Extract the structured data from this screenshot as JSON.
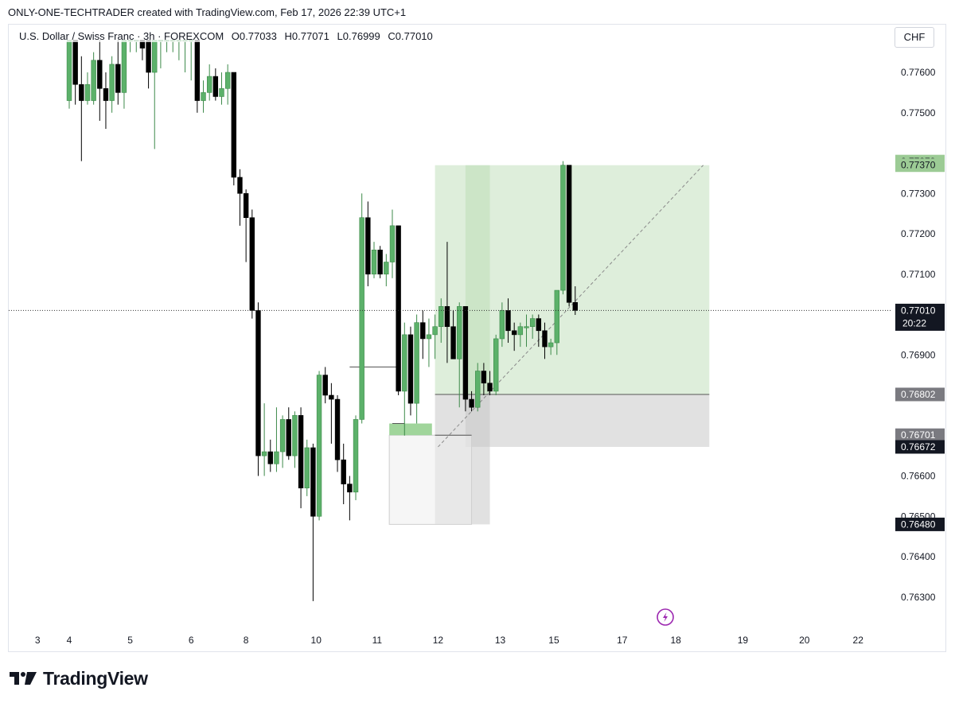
{
  "header": {
    "text": "ONLY-ONE-TECHTRADER created with TradingView.com, Feb 17, 2026 22:39 UTC+1"
  },
  "legend": {
    "symbol": "U.S. Dollar / Swiss Franc · 3h · FOREXCOM",
    "open": "O0.77033",
    "high": "H0.77071",
    "low": "L0.76999",
    "close": "C0.77010"
  },
  "currency": "CHF",
  "brand": "TradingView",
  "colors": {
    "up": "#5cb16a",
    "down": "#000000",
    "profit_zone": "#b5d9b0",
    "loss_zone": "#c9c9c9",
    "grid_line": "#e0e3eb",
    "text": "#131722"
  },
  "chart_data": {
    "type": "candlestick",
    "y_axis": {
      "range": [
        0.7624,
        0.7768
      ],
      "ticks": [
        "0.76300",
        "0.76400",
        "0.76500",
        "0.76600",
        "0.76900",
        "0.77100",
        "0.77200",
        "0.77300",
        "0.77500",
        "0.77600"
      ]
    },
    "x_axis": {
      "ticks": [
        {
          "label": "3",
          "pos": -5.2
        },
        {
          "label": "4",
          "pos": 0
        },
        {
          "label": "5",
          "pos": 10
        },
        {
          "label": "6",
          "pos": 20
        },
        {
          "label": "8",
          "pos": 29
        },
        {
          "label": "10",
          "pos": 40.5
        },
        {
          "label": "11",
          "pos": 50.5
        },
        {
          "label": "12",
          "pos": 60.5
        },
        {
          "label": "13",
          "pos": 70.7
        },
        {
          "label": "15",
          "pos": 79.5
        },
        {
          "label": "17",
          "pos": 90.7
        },
        {
          "label": "18",
          "pos": 99.5
        },
        {
          "label": "19",
          "pos": 110.5
        },
        {
          "label": "20",
          "pos": 120.6
        },
        {
          "label": "22",
          "pos": 129.4
        }
      ]
    },
    "price_labels": [
      {
        "value": "0.77379",
        "price": 0.77379,
        "style": "green"
      },
      {
        "value": "0.77370",
        "price": 0.7737,
        "style": "green"
      },
      {
        "value": "0.77010",
        "price": 0.7701,
        "style": "dark",
        "countdown": "20:22"
      },
      {
        "value": "0.76802",
        "price": 0.76802,
        "style": "gray"
      },
      {
        "value": "0.76701",
        "price": 0.76701,
        "style": "gray"
      },
      {
        "value": "0.76672",
        "price": 0.76672,
        "style": "dark"
      },
      {
        "value": "0.76480",
        "price": 0.7648,
        "style": "dark"
      }
    ],
    "current_price": 0.7701,
    "candles": [
      {
        "o": 0.7753,
        "h": 0.7768,
        "l": 0.7751,
        "c": 0.7768
      },
      {
        "o": 0.7768,
        "h": 0.7768,
        "l": 0.7752,
        "c": 0.7757
      },
      {
        "o": 0.7757,
        "h": 0.7764,
        "l": 0.7738,
        "c": 0.7753
      },
      {
        "o": 0.7753,
        "h": 0.776,
        "l": 0.7752,
        "c": 0.7757
      },
      {
        "o": 0.7753,
        "h": 0.7765,
        "l": 0.7752,
        "c": 0.7763
      },
      {
        "o": 0.7763,
        "h": 0.7768,
        "l": 0.7748,
        "c": 0.7756
      },
      {
        "o": 0.7756,
        "h": 0.776,
        "l": 0.7746,
        "c": 0.7753
      },
      {
        "o": 0.7753,
        "h": 0.7764,
        "l": 0.775,
        "c": 0.7762
      },
      {
        "o": 0.7762,
        "h": 0.7768,
        "l": 0.7752,
        "c": 0.7755
      },
      {
        "o": 0.7755,
        "h": 0.7768,
        "l": 0.7751,
        "c": 0.7768
      },
      {
        "o": 0.7768,
        "h": 0.7768,
        "l": 0.7765,
        "c": 0.7768
      },
      {
        "o": 0.7768,
        "h": 0.7768,
        "l": 0.7765,
        "c": 0.7768
      },
      {
        "o": 0.7768,
        "h": 0.7768,
        "l": 0.7763,
        "c": 0.7766
      },
      {
        "o": 0.7768,
        "h": 0.7768,
        "l": 0.7756,
        "c": 0.776
      },
      {
        "o": 0.776,
        "h": 0.7768,
        "l": 0.7741,
        "c": 0.7768
      },
      {
        "o": 0.7768,
        "h": 0.7768,
        "l": 0.7761,
        "c": 0.7768
      },
      {
        "o": 0.7768,
        "h": 0.7768,
        "l": 0.7765,
        "c": 0.7768
      },
      {
        "o": 0.7768,
        "h": 0.7768,
        "l": 0.7765,
        "c": 0.7768
      },
      {
        "o": 0.7768,
        "h": 0.7768,
        "l": 0.7763,
        "c": 0.7768
      },
      {
        "o": 0.7768,
        "h": 0.7768,
        "l": 0.776,
        "c": 0.7768
      },
      {
        "o": 0.7768,
        "h": 0.7768,
        "l": 0.7758,
        "c": 0.7768
      },
      {
        "o": 0.7768,
        "h": 0.7768,
        "l": 0.775,
        "c": 0.7753
      },
      {
        "o": 0.7753,
        "h": 0.7758,
        "l": 0.775,
        "c": 0.7755
      },
      {
        "o": 0.7755,
        "h": 0.7762,
        "l": 0.7753,
        "c": 0.7759
      },
      {
        "o": 0.7759,
        "h": 0.7761,
        "l": 0.7753,
        "c": 0.7754
      },
      {
        "o": 0.7754,
        "h": 0.776,
        "l": 0.7752,
        "c": 0.7756
      },
      {
        "o": 0.7756,
        "h": 0.7762,
        "l": 0.7752,
        "c": 0.776
      },
      {
        "o": 0.776,
        "h": 0.776,
        "l": 0.7732,
        "c": 0.7734
      },
      {
        "o": 0.7734,
        "h": 0.7736,
        "l": 0.7722,
        "c": 0.773
      },
      {
        "o": 0.773,
        "h": 0.7731,
        "l": 0.7713,
        "c": 0.7724
      },
      {
        "o": 0.7724,
        "h": 0.7726,
        "l": 0.7699,
        "c": 0.7701
      },
      {
        "o": 0.7701,
        "h": 0.7703,
        "l": 0.766,
        "c": 0.7665
      },
      {
        "o": 0.7665,
        "h": 0.7678,
        "l": 0.766,
        "c": 0.7666
      },
      {
        "o": 0.7666,
        "h": 0.7669,
        "l": 0.7661,
        "c": 0.7663
      },
      {
        "o": 0.7663,
        "h": 0.7677,
        "l": 0.7661,
        "c": 0.7666
      },
      {
        "o": 0.7666,
        "h": 0.7675,
        "l": 0.7662,
        "c": 0.7674
      },
      {
        "o": 0.7674,
        "h": 0.7677,
        "l": 0.7664,
        "c": 0.7665
      },
      {
        "o": 0.7665,
        "h": 0.7676,
        "l": 0.7662,
        "c": 0.7675
      },
      {
        "o": 0.7675,
        "h": 0.7677,
        "l": 0.7652,
        "c": 0.7657
      },
      {
        "o": 0.7657,
        "h": 0.7669,
        "l": 0.7655,
        "c": 0.7667
      },
      {
        "o": 0.7667,
        "h": 0.7668,
        "l": 0.7629,
        "c": 0.765
      },
      {
        "o": 0.765,
        "h": 0.7686,
        "l": 0.7649,
        "c": 0.7685
      },
      {
        "o": 0.7685,
        "h": 0.7687,
        "l": 0.7678,
        "c": 0.768
      },
      {
        "o": 0.768,
        "h": 0.7683,
        "l": 0.7668,
        "c": 0.7679
      },
      {
        "o": 0.7679,
        "h": 0.768,
        "l": 0.7661,
        "c": 0.7664
      },
      {
        "o": 0.7664,
        "h": 0.7668,
        "l": 0.7653,
        "c": 0.7658
      },
      {
        "o": 0.7658,
        "h": 0.766,
        "l": 0.7649,
        "c": 0.7656
      },
      {
        "o": 0.7656,
        "h": 0.7675,
        "l": 0.7654,
        "c": 0.7674
      },
      {
        "o": 0.7674,
        "h": 0.773,
        "l": 0.7673,
        "c": 0.7724
      },
      {
        "o": 0.7724,
        "h": 0.7728,
        "l": 0.7707,
        "c": 0.771
      },
      {
        "o": 0.771,
        "h": 0.7718,
        "l": 0.7709,
        "c": 0.7716
      },
      {
        "o": 0.7716,
        "h": 0.7717,
        "l": 0.7709,
        "c": 0.771
      },
      {
        "o": 0.771,
        "h": 0.7715,
        "l": 0.7707,
        "c": 0.7713
      },
      {
        "o": 0.7713,
        "h": 0.7726,
        "l": 0.7709,
        "c": 0.7722
      },
      {
        "o": 0.7722,
        "h": 0.7722,
        "l": 0.768,
        "c": 0.7681
      },
      {
        "o": 0.7681,
        "h": 0.7698,
        "l": 0.767,
        "c": 0.7695
      },
      {
        "o": 0.7695,
        "h": 0.7697,
        "l": 0.7675,
        "c": 0.7678
      },
      {
        "o": 0.7678,
        "h": 0.77,
        "l": 0.7673,
        "c": 0.7698
      },
      {
        "o": 0.7698,
        "h": 0.7701,
        "l": 0.7689,
        "c": 0.7694
      },
      {
        "o": 0.7694,
        "h": 0.7699,
        "l": 0.7687,
        "c": 0.7695
      },
      {
        "o": 0.7695,
        "h": 0.77,
        "l": 0.7689,
        "c": 0.7697
      },
      {
        "o": 0.7697,
        "h": 0.7704,
        "l": 0.7693,
        "c": 0.7702
      },
      {
        "o": 0.7702,
        "h": 0.7718,
        "l": 0.7688,
        "c": 0.7697
      },
      {
        "o": 0.7697,
        "h": 0.7701,
        "l": 0.7689,
        "c": 0.7689
      },
      {
        "o": 0.7689,
        "h": 0.7703,
        "l": 0.7677,
        "c": 0.7702
      },
      {
        "o": 0.7702,
        "h": 0.7702,
        "l": 0.7676,
        "c": 0.7679
      },
      {
        "o": 0.7679,
        "h": 0.7681,
        "l": 0.7676,
        "c": 0.7677
      },
      {
        "o": 0.7677,
        "h": 0.7688,
        "l": 0.7676,
        "c": 0.7686
      },
      {
        "o": 0.7686,
        "h": 0.7688,
        "l": 0.768,
        "c": 0.7683
      },
      {
        "o": 0.7683,
        "h": 0.7686,
        "l": 0.768,
        "c": 0.7681
      },
      {
        "o": 0.7681,
        "h": 0.7695,
        "l": 0.768,
        "c": 0.7694
      },
      {
        "o": 0.7694,
        "h": 0.7703,
        "l": 0.7692,
        "c": 0.7701
      },
      {
        "o": 0.7701,
        "h": 0.7704,
        "l": 0.7693,
        "c": 0.7696
      },
      {
        "o": 0.7696,
        "h": 0.7698,
        "l": 0.7691,
        "c": 0.7695
      },
      {
        "o": 0.7695,
        "h": 0.7698,
        "l": 0.7692,
        "c": 0.7697
      },
      {
        "o": 0.7697,
        "h": 0.77,
        "l": 0.7692,
        "c": 0.7697
      },
      {
        "o": 0.7697,
        "h": 0.77,
        "l": 0.7694,
        "c": 0.7699
      },
      {
        "o": 0.7699,
        "h": 0.77,
        "l": 0.7692,
        "c": 0.7696
      },
      {
        "o": 0.7696,
        "h": 0.7698,
        "l": 0.7689,
        "c": 0.7692
      },
      {
        "o": 0.7692,
        "h": 0.7694,
        "l": 0.769,
        "c": 0.7693
      },
      {
        "o": 0.7693,
        "h": 0.7706,
        "l": 0.769,
        "c": 0.7706
      },
      {
        "o": 0.7706,
        "h": 0.7738,
        "l": 0.7705,
        "c": 0.7737
      },
      {
        "o": 0.7737,
        "h": 0.7737,
        "l": 0.7702,
        "c": 0.7703
      },
      {
        "o": 0.7703,
        "h": 0.7707,
        "l": 0.76999,
        "c": 0.7701
      }
    ],
    "drawings": {
      "position_boxes": [
        {
          "kind": "profit",
          "start": 60,
          "end": 69,
          "top": 0.7737,
          "bottom": 0.76802
        },
        {
          "kind": "profit",
          "start": 65,
          "end": 105,
          "top": 0.7737,
          "bottom": 0.76802
        },
        {
          "kind": "loss",
          "start": 60,
          "end": 69,
          "top": 0.76802,
          "bottom": 0.7648
        },
        {
          "kind": "loss",
          "start": 65,
          "end": 105,
          "top": 0.76802,
          "bottom": 0.76672
        },
        {
          "kind": "neutral",
          "start": 52.5,
          "end": 66,
          "top": 0.76701,
          "bottom": 0.7648
        }
      ],
      "order_block": {
        "start": 52.5,
        "end": 59.5,
        "top": 0.7673,
        "bottom": 0.76701
      },
      "trend_line": {
        "x1": 60.5,
        "y1": 0.76672,
        "x2": 104,
        "y2": 0.7737
      },
      "level_lines": [
        {
          "start": 60,
          "end": 105,
          "price": 0.76802
        },
        {
          "start": 60,
          "end": 66,
          "price": 0.76701
        },
        {
          "start": 46,
          "end": 54,
          "price": 0.7687
        },
        {
          "start": 53,
          "end": 55,
          "price": 0.7673
        }
      ]
    }
  }
}
